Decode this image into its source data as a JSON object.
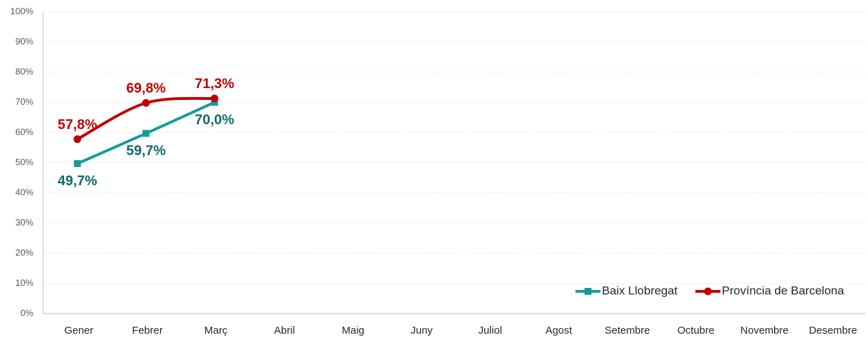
{
  "chart_data": {
    "type": "line",
    "categories": [
      "Gener",
      "Febrer",
      "Març",
      "Abril",
      "Maig",
      "Juny",
      "Juliol",
      "Agost",
      "Setembre",
      "Octubre",
      "Novembre",
      "Desembre"
    ],
    "series": [
      {
        "name": "Baix Llobregat",
        "color": "#169b9b",
        "label_color": "#0e6b6b",
        "marker": "square",
        "label_position": "below",
        "values": [
          49.7,
          59.7,
          70.0,
          null,
          null,
          null,
          null,
          null,
          null,
          null,
          null,
          null
        ],
        "value_labels": [
          "49,7%",
          "59,7%",
          "70,0%",
          null,
          null,
          null,
          null,
          null,
          null,
          null,
          null,
          null
        ]
      },
      {
        "name": "Província de Barcelona",
        "color": "#c00000",
        "label_color": "#c00000",
        "marker": "circle",
        "label_position": "above",
        "values": [
          57.8,
          69.8,
          71.3,
          null,
          null,
          null,
          null,
          null,
          null,
          null,
          null,
          null
        ],
        "value_labels": [
          "57,8%",
          "69,8%",
          "71,3%",
          null,
          null,
          null,
          null,
          null,
          null,
          null,
          null,
          null
        ]
      }
    ],
    "ylim": [
      0,
      100
    ],
    "yticks": [
      {
        "value": 0,
        "label": "0%"
      },
      {
        "value": 10,
        "label": "10%"
      },
      {
        "value": 20,
        "label": "20%"
      },
      {
        "value": 30,
        "label": "30%"
      },
      {
        "value": 40,
        "label": "40%"
      },
      {
        "value": 50,
        "label": "50%"
      },
      {
        "value": 60,
        "label": "60%"
      },
      {
        "value": 70,
        "label": "70%"
      },
      {
        "value": 80,
        "label": "80%"
      },
      {
        "value": 90,
        "label": "90%"
      },
      {
        "value": 100,
        "label": "100%"
      }
    ],
    "grid": true,
    "smooth": true,
    "legend": "lower right"
  }
}
